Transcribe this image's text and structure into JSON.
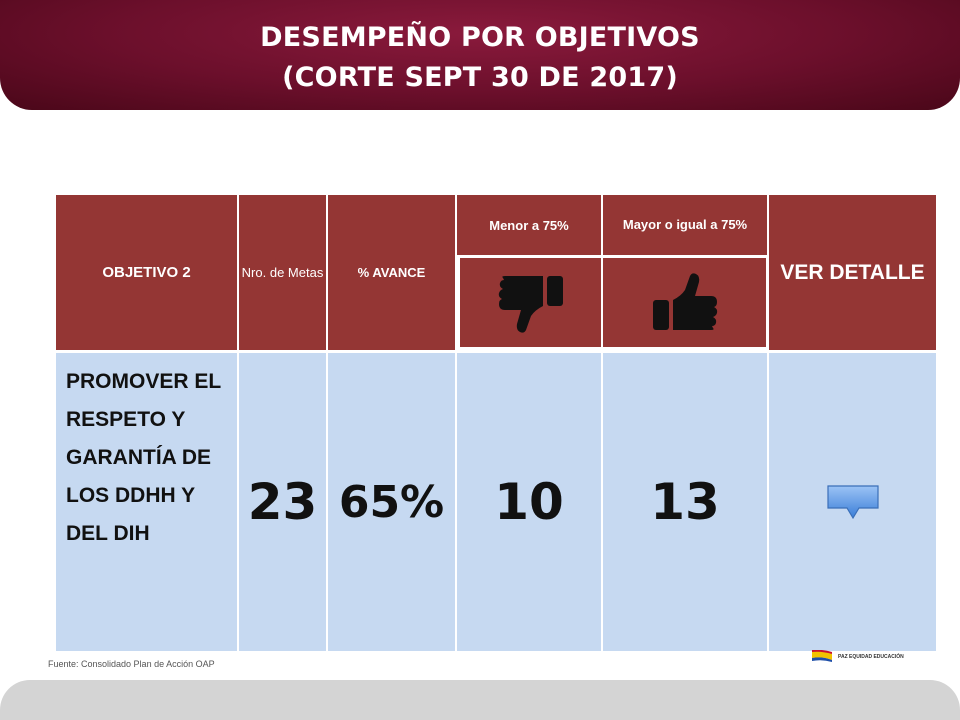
{
  "header": {
    "title_line1": "DESEMPEÑO POR OBJETIVOS",
    "title_line2": "(CORTE SEPT 30 DE 2017)"
  },
  "table": {
    "headers": {
      "objetivo": "OBJETIVO 2",
      "nro_metas": "Nro. de Metas",
      "avance": "% AVANCE",
      "menor": "Menor a  75%",
      "mayor": "Mayor o igual a 75%",
      "ver_detalle": "VER DETALLE"
    },
    "icons": {
      "menor": "thumbs-down-icon",
      "mayor": "thumbs-up-icon",
      "detalle": "arrow-down-button"
    },
    "row": {
      "objetivo": "PROMOVER EL RESPETO Y GARANTÍA DE LOS DDHH Y DEL DIH",
      "nro_metas": "23",
      "avance": "65%",
      "menor": "10",
      "mayor": "13"
    }
  },
  "footer": {
    "fuente": "Fuente: Consolidado Plan de Acción OAP",
    "logo_text": "PAZ  EQUIDAD  EDUCACIÓN"
  },
  "colors": {
    "header_bg": "#6b0f2b",
    "table_header_bg": "#943634",
    "table_body_bg": "#c6d9f1",
    "button_blue": "#4f8fe0"
  }
}
